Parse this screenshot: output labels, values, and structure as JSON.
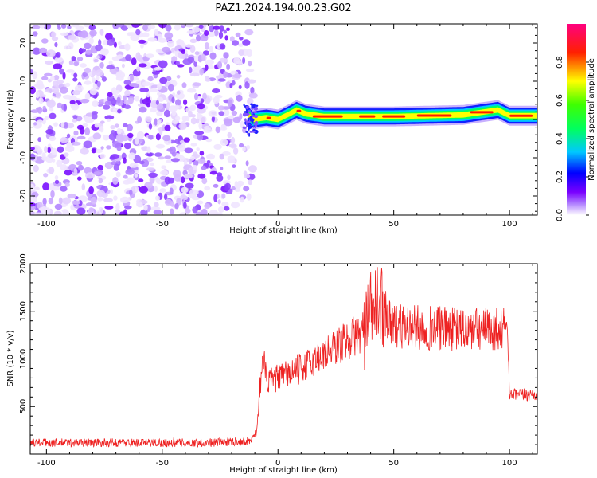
{
  "title": "PAZ1.2024.194.00.23.G02",
  "chart_data": [
    {
      "type": "heatmap",
      "xlabel": "Height of straight line (km)",
      "ylabel": "Frequency (Hz)",
      "xlim": [
        -107,
        112
      ],
      "ylim": [
        -25,
        25
      ],
      "x_ticks": [
        -100,
        -50,
        0,
        50,
        100
      ],
      "y_ticks": [
        -20,
        -10,
        0,
        10,
        20
      ],
      "colorbar": {
        "label": "Normalized spectral amplitude",
        "ticks": [
          "0.0",
          "0.2",
          "0.4",
          "0.6",
          "0.8"
        ],
        "range": [
          0,
          1
        ],
        "colors": [
          "#ffffff",
          "#7a00ff",
          "#0000ff",
          "#00ffff",
          "#00ff00",
          "#ffff00",
          "#ff0000",
          "#ff0080"
        ]
      },
      "description_points": {
        "noise_region_x": [
          -107,
          -14
        ],
        "signal_region_x": [
          -14,
          112
        ],
        "signal_track": [
          {
            "x": -14,
            "y": 2
          },
          {
            "x": -11,
            "y": 0
          },
          {
            "x": -5,
            "y": 0.5
          },
          {
            "x": 0,
            "y": 0
          },
          {
            "x": 5,
            "y": 1.5
          },
          {
            "x": 8,
            "y": 2.5
          },
          {
            "x": 12,
            "y": 1.5
          },
          {
            "x": 20,
            "y": 0.8
          },
          {
            "x": 50,
            "y": 0.8
          },
          {
            "x": 80,
            "y": 1.2
          },
          {
            "x": 95,
            "y": 2.5
          },
          {
            "x": 100,
            "y": 1
          },
          {
            "x": 112,
            "y": 1
          }
        ]
      }
    },
    {
      "type": "line",
      "xlabel": "Height of straight line (km)",
      "ylabel": "SNR (10 * v/v)",
      "xlim": [
        -107,
        112
      ],
      "ylim": [
        0,
        2000
      ],
      "x_ticks": [
        -100,
        -50,
        0,
        50,
        100
      ],
      "y_ticks": [
        500,
        1000,
        1500,
        2000
      ],
      "series": [
        {
          "color": "#ee2222",
          "x": [
            -107,
            -90,
            -60,
            -30,
            -12,
            -9,
            -8,
            -6,
            -5,
            0,
            10,
            20,
            30,
            38,
            40,
            44,
            50,
            60,
            70,
            80,
            90,
            98,
            99,
            100,
            105,
            112
          ],
          "y": [
            120,
            120,
            120,
            120,
            140,
            250,
            700,
            1000,
            750,
            800,
            900,
            1050,
            1200,
            1300,
            1500,
            1600,
            1350,
            1330,
            1320,
            1300,
            1310,
            1320,
            1400,
            620,
            620,
            630
          ]
        }
      ]
    }
  ]
}
